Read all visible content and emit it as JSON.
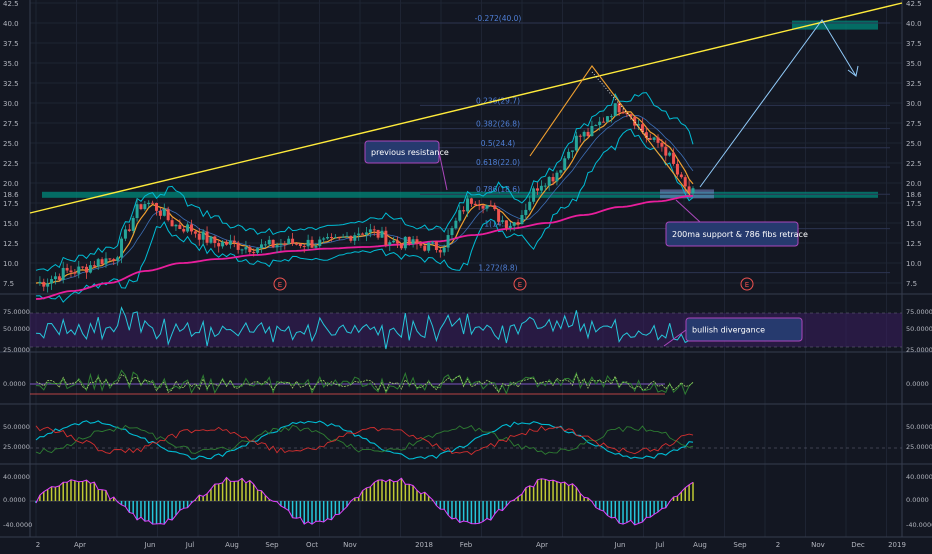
{
  "theme": {
    "background": "#131722",
    "axis_text": "#b2b5be",
    "fib_text": "#4f7fd6",
    "candle_up": "#26a69a",
    "candle_down": "#ef5350",
    "ma200": "#e91e9c",
    "ma_orange": "#f0a030",
    "bollinger": "#00bcd4",
    "trend_yellow": "#ffeb3b",
    "support_band": "#00897b",
    "annotation_bg": "#263a6e",
    "annotation_border": "#ab47bc",
    "rsi": "#26c6da",
    "rsi_band": "#3b1e5e",
    "macd_hist_pos": "#c0ca33",
    "macd_hist_neg": "#26c6da",
    "macd_hist_border": "#e040fb"
  },
  "price_axis": {
    "left_ticks": [
      "42.5",
      "40.0",
      "37.5",
      "35.0",
      "32.5",
      "30.0",
      "27.5",
      "25.0",
      "22.5",
      "20.0",
      "18.6",
      "17.5",
      "15.0",
      "12.5",
      "10.0",
      "7.5"
    ],
    "right_ticks": [
      "42.5",
      "40.0",
      "37.5",
      "35.0",
      "32.5",
      "30.0",
      "27.5",
      "25.0",
      "22.5",
      "20.0",
      "18.6",
      "17.5",
      "15.0",
      "12.5",
      "10.0",
      "7.5"
    ]
  },
  "fib_levels": [
    "-0.272(40.0)",
    "0.236(29.7)",
    "0.382(26.8)",
    "0.5(24.4)",
    "0.618(22.0)",
    "0.786(18.6)",
    "1(14.3)",
    "1.272(8.8)"
  ],
  "earnings_marker": "E",
  "annotations": {
    "previous_resistance": "previous resistance",
    "support_note": "200ma support & 786 fibs retrace",
    "bullish_divergence": "bullish divergance"
  },
  "rsi_axis": {
    "left": [
      "75.0000",
      "50.0000",
      "25.0000"
    ],
    "right": [
      "75.0000",
      "50.0000",
      "25.0000"
    ]
  },
  "osc_axis": {
    "left": [
      "0.0000"
    ],
    "right": [
      "0.0000"
    ]
  },
  "dmi_axis": {
    "left": [
      "50.0000",
      "25.0000"
    ],
    "right": [
      "50.0000",
      "25.0000"
    ]
  },
  "macd_axis": {
    "left": [
      "40.0000",
      "0.0000",
      "-40.0000"
    ],
    "right": [
      "40.0000",
      "0.0000",
      "-40.0000"
    ]
  },
  "time_axis": [
    "2",
    "Apr",
    "Jun",
    "Jul",
    "Aug",
    "Sep",
    "Oct",
    "Nov",
    "2018",
    "Feb",
    "Apr",
    "Jun",
    "Jul",
    "Aug",
    "Sep",
    "2",
    "Nov",
    "Dec",
    "2019"
  ],
  "chart_data": {
    "type": "line",
    "title": "",
    "xlabel": "",
    "ylabel": "",
    "ylim": [
      5.0,
      42.5
    ],
    "x": [
      "2017-01",
      "2017-02",
      "2017-03",
      "2017-04",
      "2017-05",
      "2017-06",
      "2017-07",
      "2017-08",
      "2017-09",
      "2017-10",
      "2017-11",
      "2017-12",
      "2018-01",
      "2018-02",
      "2018-03",
      "2018-04",
      "2018-05",
      "2018-06",
      "2018-07"
    ],
    "series": [
      {
        "values": [
          7.5,
          9.0,
          10.5,
          17.5,
          14.5,
          12.5,
          12.0,
          12.5,
          12.5,
          14.0,
          12.5,
          12.0,
          18.0,
          15.0,
          20.5,
          26.0,
          29.5,
          25.0,
          18.6
        ]
      },
      {
        "name": "200ma",
        "values": [
          5.5,
          6.5,
          7.5,
          9.0,
          10.0,
          10.5,
          11.0,
          11.5,
          11.8,
          12.0,
          12.3,
          12.7,
          13.5,
          14.3,
          15.0,
          16.0,
          17.0,
          17.7,
          18.4
        ]
      }
    ],
    "levels": [
      40.0,
      29.7,
      26.8,
      24.4,
      22.0,
      18.6,
      14.3,
      8.8
    ],
    "grid": true
  }
}
